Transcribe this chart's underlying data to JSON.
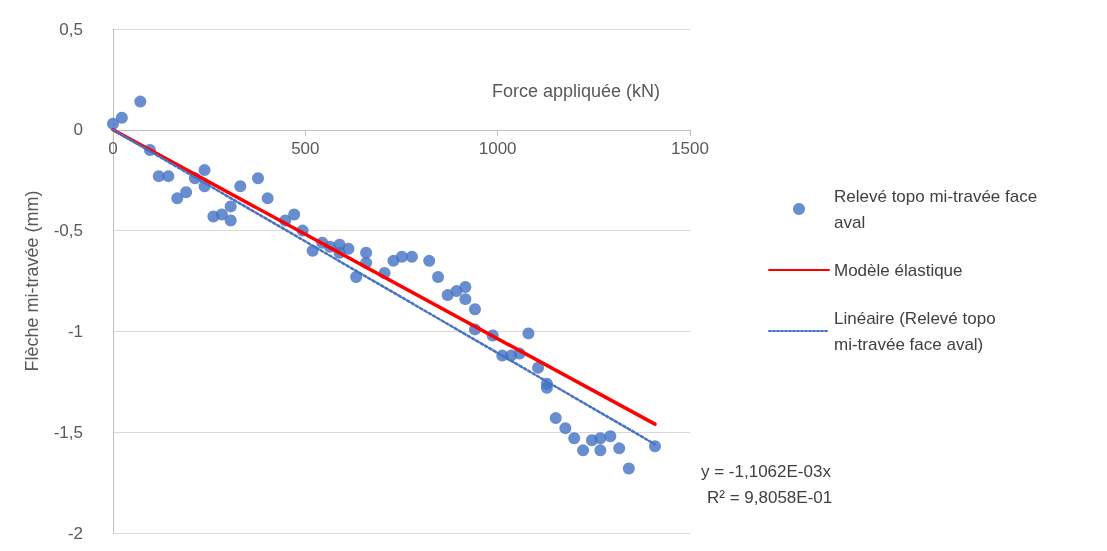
{
  "chart_data": {
    "type": "scatter",
    "xlabel": "Force appliquée (kN)",
    "ylabel": "Flèche mi-travée (mm)",
    "xlim": [
      0,
      1500
    ],
    "xticks": [
      0,
      500,
      1000,
      1500
    ],
    "ylim": [
      -2,
      0.5
    ],
    "yticks": [
      {
        "value": -2,
        "label": "-2"
      },
      {
        "value": -1.5,
        "label": "-1,5"
      },
      {
        "value": -1,
        "label": "-1"
      },
      {
        "value": -0.5,
        "label": "-0,5"
      },
      {
        "value": 0,
        "label": "0"
      },
      {
        "value": 0.5,
        "label": "0,5"
      }
    ],
    "grid": "y",
    "legend": "right",
    "marker": "circle",
    "series": [
      {
        "name": "Relevé topo mi-travée face aval",
        "type": "scatter",
        "color": "#4472c4",
        "x": [
          0,
          23,
          71,
          96,
          119,
          144,
          167,
          190,
          213,
          238,
          238,
          261,
          283,
          306,
          306,
          331,
          377,
          402,
          448,
          471,
          493,
          519,
          544,
          564,
          589,
          589,
          612,
          632,
          658,
          658,
          706,
          729,
          751,
          777,
          822,
          845,
          870,
          893,
          916,
          916,
          941,
          941,
          987,
          1012,
          1035,
          1057,
          1080,
          1105,
          1128,
          1128,
          1151,
          1176,
          1199,
          1222,
          1245,
          1267,
          1267,
          1293,
          1316,
          1341,
          1409
        ],
        "values": [
          0.03,
          0.06,
          0.14,
          -0.1,
          -0.23,
          -0.23,
          -0.34,
          -0.31,
          -0.24,
          -0.2,
          -0.28,
          -0.43,
          -0.42,
          -0.38,
          -0.45,
          -0.28,
          -0.24,
          -0.34,
          -0.45,
          -0.42,
          -0.5,
          -0.6,
          -0.56,
          -0.58,
          -0.57,
          -0.61,
          -0.59,
          -0.73,
          -0.61,
          -0.66,
          -0.71,
          -0.65,
          -0.63,
          -0.63,
          -0.65,
          -0.73,
          -0.82,
          -0.8,
          -0.78,
          -0.84,
          -0.89,
          -0.99,
          -1.02,
          -1.12,
          -1.12,
          -1.11,
          -1.01,
          -1.18,
          -1.26,
          -1.28,
          -1.43,
          -1.48,
          -1.53,
          -1.59,
          -1.54,
          -1.53,
          -1.59,
          -1.52,
          -1.58,
          -1.68,
          -1.57
        ]
      },
      {
        "name": "Modèle élastique",
        "type": "line",
        "color": "#ff0000",
        "line_style": "solid",
        "marker": "none",
        "x": [
          0,
          1409
        ],
        "values": [
          0,
          -1.46
        ]
      },
      {
        "name": "Linéaire (Relevé topo mi-travée face aval)",
        "type": "line",
        "color": "#4472c4",
        "line_style": "dotted",
        "marker": "none",
        "x": [
          0,
          1409
        ],
        "values": [
          0,
          -1.56
        ]
      }
    ],
    "annotations": [
      "y = -1,1062E-03x",
      "R² = 9,8058E-01"
    ]
  }
}
